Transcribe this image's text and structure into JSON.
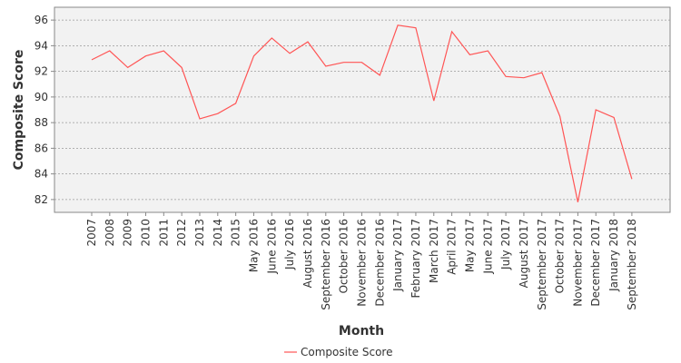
{
  "chart_data": {
    "type": "line",
    "xlabel": "Month",
    "ylabel": "Composite Score",
    "ylim": [
      81,
      97
    ],
    "yticks": [
      82,
      84,
      86,
      88,
      90,
      92,
      94,
      96
    ],
    "grid": true,
    "legend_position": "bottom-center",
    "categories": [
      "2007",
      "2008",
      "2009",
      "2010",
      "2011",
      "2012",
      "2013",
      "2014",
      "2015",
      "May 2016",
      "June 2016",
      "July 2016",
      "August 2016",
      "September 2016",
      "October 2016",
      "November 2016",
      "December 2016",
      "January 2017",
      "February 2017",
      "March 2017",
      "April 2017",
      "May 2017",
      "June 2017",
      "July 2017",
      "August 2017",
      "September 2017",
      "October 2017",
      "November 2017",
      "December 2017",
      "January 2018",
      "September 2018"
    ],
    "series": [
      {
        "name": "Composite Score",
        "color": "#ff5555",
        "values": [
          92.9,
          93.6,
          92.3,
          93.2,
          93.6,
          92.3,
          88.3,
          88.7,
          89.5,
          93.2,
          94.6,
          93.4,
          94.3,
          92.4,
          92.7,
          92.7,
          91.7,
          95.6,
          95.4,
          89.7,
          95.1,
          93.3,
          93.6,
          91.6,
          91.5,
          91.9,
          88.5,
          81.8,
          89.0,
          88.4,
          83.6
        ]
      }
    ]
  }
}
